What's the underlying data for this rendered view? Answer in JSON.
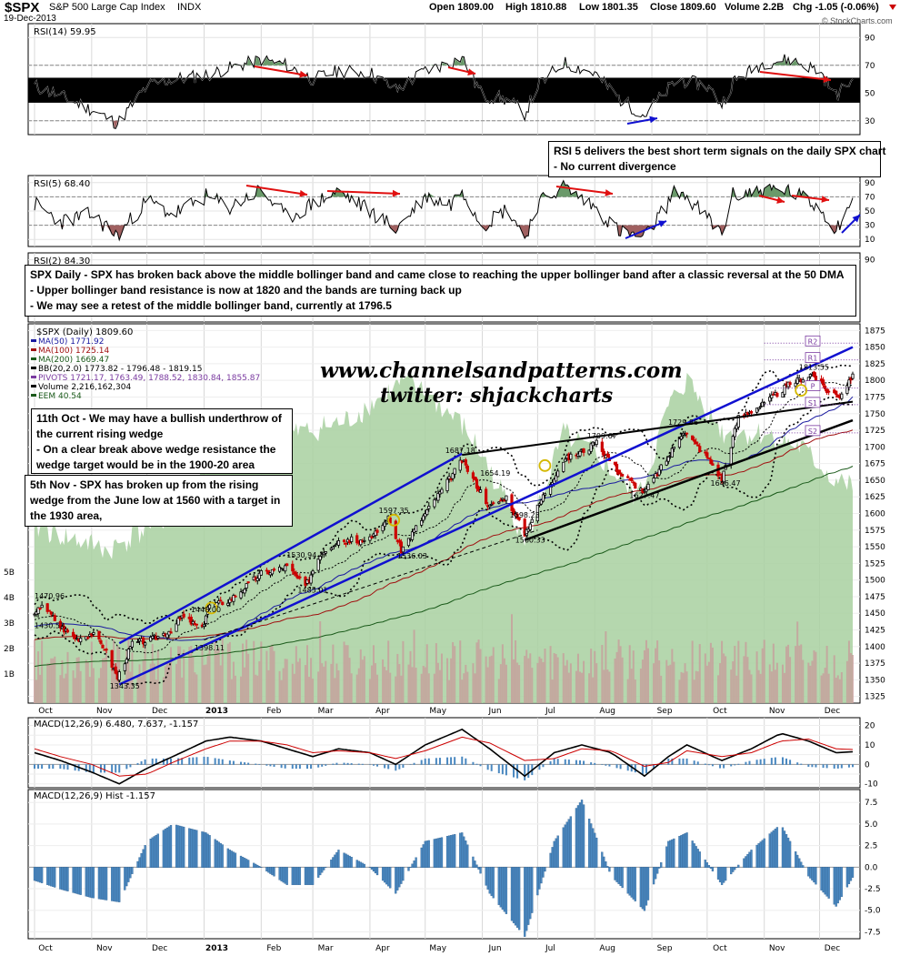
{
  "header": {
    "symbol": "$SPX",
    "name": "S&P 500 Large Cap Index",
    "exchange": "INDX",
    "date": "19-Dec-2013",
    "open": "Open 1809.00",
    "high": "High 1810.88",
    "low": "Low 1801.35",
    "close": "Close 1809.60",
    "volume": "Volume 2.2B",
    "chg": "Chg -1.05 (-0.06%)",
    "brand": "© StockCharts.com"
  },
  "watermark": {
    "site": "www.channelsandpatterns.com",
    "twitter": "twitter: shjackcharts"
  },
  "annotations": {
    "rsi5_note": [
      "RSI 5 delivers the best short term signals on the daily SPX chart",
      "- No current divergence"
    ],
    "daily_note": [
      "SPX Daily - SPX has broken back above the middle bollinger band and came close to reaching the upper bollinger band after a classic reversal at the 50 DMA",
      "- Upper bollinger band resistance is now at 1820 and the bands are turning back up",
      "- We may see a retest of the middle bollinger band, currently at 1796.5"
    ],
    "oct_note": [
      "11th Oct - We may have a bullish underthrow of",
      "the current rising wedge",
      "- On a clear break above wedge resistance the",
      "wedge target would be in the 1900-20 area"
    ],
    "nov_note": [
      "5th Nov - SPX has broken up from the rising",
      "wedge from the June low at 1560 with a target in",
      "the 1930 area,"
    ]
  },
  "colors": {
    "up": "#000000",
    "down": "#cc0000",
    "volume": "#c89a9a",
    "area": "#a8d0a0",
    "ma50": "#1a1aa0",
    "ma100": "#a01010",
    "ma200": "#1a5a1a",
    "trend_blue": "#1010d0",
    "rsi_fill": "#6a9a6a",
    "macd_hist": "#4a88c0",
    "arrow_red": "#e01010"
  },
  "chart_data": [
    {
      "type": "line",
      "panel": "rsi14",
      "title": "RSI(14) 59.95",
      "ylim": [
        20,
        100
      ],
      "yticks": [
        30,
        50,
        70,
        90
      ],
      "levels": [
        30,
        70
      ],
      "band": [
        43,
        61
      ],
      "x": [
        "2012-10-01",
        "2012-10-15",
        "2012-11-01",
        "2012-11-15",
        "2012-12-01",
        "2012-12-15",
        "2013-01-02",
        "2013-01-15",
        "2013-02-01",
        "2013-02-15",
        "2013-03-01",
        "2013-03-15",
        "2013-04-01",
        "2013-04-15",
        "2013-05-01",
        "2013-05-15",
        "2013-05-21",
        "2013-06-01",
        "2013-06-15",
        "2013-06-24",
        "2013-07-01",
        "2013-07-15",
        "2013-08-01",
        "2013-08-15",
        "2013-08-28",
        "2013-09-15",
        "2013-10-01",
        "2013-10-09",
        "2013-10-15",
        "2013-11-01",
        "2013-11-15",
        "2013-12-01",
        "2013-12-10",
        "2013-12-19"
      ],
      "values": [
        55,
        48,
        38,
        28,
        55,
        60,
        63,
        68,
        74,
        70,
        60,
        66,
        65,
        52,
        66,
        72,
        76,
        48,
        45,
        35,
        55,
        72,
        64,
        45,
        34,
        60,
        55,
        42,
        58,
        72,
        74,
        66,
        48,
        59.95
      ],
      "series_names": [
        "RSI(14)"
      ]
    },
    {
      "type": "line",
      "panel": "rsi5",
      "title": "RSI(5) 68.40",
      "ylim": [
        0,
        100
      ],
      "yticks": [
        10,
        30,
        50,
        70,
        90
      ],
      "levels": [
        30,
        70
      ],
      "x": [
        "2012-10-01",
        "2012-10-15",
        "2012-11-01",
        "2012-11-15",
        "2012-12-01",
        "2012-12-15",
        "2013-01-02",
        "2013-01-15",
        "2013-02-01",
        "2013-02-15",
        "2013-03-01",
        "2013-03-15",
        "2013-04-01",
        "2013-04-15",
        "2013-05-01",
        "2013-05-15",
        "2013-05-21",
        "2013-06-01",
        "2013-06-15",
        "2013-06-24",
        "2013-07-01",
        "2013-07-15",
        "2013-08-01",
        "2013-08-15",
        "2013-08-28",
        "2013-09-15",
        "2013-10-01",
        "2013-10-09",
        "2013-10-15",
        "2013-11-01",
        "2013-11-15",
        "2013-12-01",
        "2013-12-10",
        "2013-12-19"
      ],
      "values": [
        60,
        35,
        45,
        15,
        65,
        45,
        70,
        55,
        80,
        40,
        60,
        78,
        50,
        25,
        70,
        60,
        82,
        30,
        55,
        12,
        60,
        85,
        55,
        20,
        12,
        82,
        40,
        18,
        72,
        80,
        78,
        55,
        25,
        68.4
      ]
    },
    {
      "type": "line",
      "panel": "rsi2",
      "title": "RSI(2) 84.30",
      "ylim": [
        0,
        100
      ],
      "yticks": [
        90
      ]
    },
    {
      "type": "candlestick",
      "panel": "price",
      "title": "$SPX (Daily) 1809.60",
      "ylim": [
        1315,
        1885
      ],
      "yticks": [
        1325,
        1350,
        1375,
        1400,
        1425,
        1450,
        1475,
        1500,
        1525,
        1550,
        1575,
        1600,
        1625,
        1650,
        1675,
        1700,
        1725,
        1750,
        1775,
        1800,
        1825,
        1850,
        1875
      ],
      "volume_ticks": [
        "1B",
        "2B",
        "3B",
        "4B",
        "5B"
      ],
      "legend": [
        "MA(50) 1771.92",
        "MA(100) 1725.14",
        "MA(200) 1669.47",
        "BB(20,2.0) 1773.82 - 1796.48 - 1819.15",
        "PIVOTS 1721.17, 1763.49, 1788.52, 1830.84, 1855.87",
        "Volume 2,216,162,304",
        "EEM 40.54"
      ],
      "x": [
        "2012-10-01",
        "2012-10-05",
        "2012-10-15",
        "2012-10-24",
        "2012-11-01",
        "2012-11-08",
        "2012-11-15",
        "2012-11-23",
        "2012-12-03",
        "2012-12-14",
        "2012-12-20",
        "2012-12-31",
        "2013-01-03",
        "2013-01-15",
        "2013-02-01",
        "2013-02-15",
        "2013-02-25",
        "2013-03-05",
        "2013-03-15",
        "2013-04-01",
        "2013-04-11",
        "2013-04-18",
        "2013-05-01",
        "2013-05-10",
        "2013-05-21",
        "2013-06-05",
        "2013-06-14",
        "2013-06-24",
        "2013-07-05",
        "2013-07-15",
        "2013-08-02",
        "2013-08-15",
        "2013-08-28",
        "2013-09-10",
        "2013-09-18",
        "2013-10-01",
        "2013-10-09",
        "2013-10-18",
        "2013-11-01",
        "2013-11-15",
        "2013-11-27",
        "2013-12-05",
        "2013-12-12",
        "2013-12-19"
      ],
      "close": [
        1445,
        1465,
        1430,
        1412,
        1420,
        1398,
        1353,
        1405,
        1410,
        1425,
        1445,
        1426,
        1460,
        1470,
        1510,
        1520,
        1490,
        1540,
        1560,
        1560,
        1593,
        1545,
        1600,
        1635,
        1680,
        1610,
        1625,
        1570,
        1632,
        1680,
        1705,
        1660,
        1632,
        1685,
        1725,
        1685,
        1652,
        1745,
        1765,
        1795,
        1810,
        1785,
        1777,
        1809.6
      ],
      "price_labels": [
        "1470.96",
        "1430.53",
        "1343.35",
        "1398.11",
        "1448.00",
        "1485.01",
        "1530.94",
        "1597.35",
        "1536.03",
        "1687.18",
        "1654.19",
        "1598.23",
        "1560.33",
        "1709.67",
        "1627.47",
        "1729.86",
        "1646.47",
        "1813.55"
      ],
      "pivot_labels": [
        "R2",
        "R1",
        "P",
        "S1",
        "S2"
      ]
    },
    {
      "type": "line",
      "panel": "macd",
      "title": "MACD(12,26,9) 6.480, 7.637, -1.157",
      "ylim": [
        -12,
        24
      ],
      "yticks": [
        -10,
        -5,
        0,
        5,
        10,
        15,
        20
      ],
      "x": [
        "2012-10-01",
        "2012-10-15",
        "2012-11-01",
        "2012-11-16",
        "2012-12-01",
        "2012-12-15",
        "2013-01-02",
        "2013-01-15",
        "2013-02-01",
        "2013-02-15",
        "2013-03-01",
        "2013-03-15",
        "2013-04-01",
        "2013-04-15",
        "2013-05-01",
        "2013-05-21",
        "2013-06-05",
        "2013-06-24",
        "2013-07-10",
        "2013-07-25",
        "2013-08-10",
        "2013-08-28",
        "2013-09-10",
        "2013-09-20",
        "2013-10-09",
        "2013-10-25",
        "2013-11-10",
        "2013-11-25",
        "2013-12-10",
        "2013-12-19"
      ],
      "series": [
        {
          "name": "MACD(12,26,9)",
          "values": [
            6,
            2,
            -4,
            -10,
            -2,
            4,
            12,
            14,
            12,
            8,
            4,
            8,
            6,
            0,
            10,
            18,
            8,
            -6,
            6,
            10,
            6,
            -6,
            4,
            10,
            2,
            8,
            16,
            12,
            6,
            6.48
          ]
        },
        {
          "name": "Signal",
          "values": [
            8,
            4,
            0,
            -6,
            -5,
            1,
            8,
            12,
            12,
            10,
            6,
            7,
            6,
            3,
            7,
            14,
            11,
            2,
            3,
            8,
            7,
            -1,
            1,
            7,
            4,
            6,
            12,
            13,
            8,
            7.637
          ]
        }
      ]
    },
    {
      "type": "bar",
      "panel": "macd_hist",
      "title": "MACD(12,26,9) Hist -1.157",
      "ylim": [
        -8.3,
        9
      ],
      "yticks": [
        -7.5,
        -5,
        -2.5,
        0,
        2.5,
        5,
        7.5
      ],
      "x": [
        "2012-10-01",
        "2012-10-15",
        "2012-11-01",
        "2012-11-16",
        "2012-12-01",
        "2012-12-15",
        "2013-01-02",
        "2013-01-15",
        "2013-02-01",
        "2013-02-15",
        "2013-03-01",
        "2013-03-15",
        "2013-04-01",
        "2013-04-15",
        "2013-05-01",
        "2013-05-21",
        "2013-06-05",
        "2013-06-24",
        "2013-07-10",
        "2013-07-25",
        "2013-08-10",
        "2013-08-28",
        "2013-09-10",
        "2013-09-20",
        "2013-10-09",
        "2013-10-25",
        "2013-11-10",
        "2013-11-25",
        "2013-12-10",
        "2013-12-19"
      ],
      "values": [
        -1.5,
        -2.5,
        -3.5,
        -4,
        3,
        5,
        4,
        2,
        0,
        -2,
        -2,
        2,
        0,
        -3,
        3,
        4,
        -3,
        -8,
        3,
        7.8,
        -1,
        -5,
        3,
        4,
        -2,
        2,
        5,
        -1,
        -4.5,
        -1.157
      ]
    }
  ],
  "x_axis": {
    "months": [
      "Oct",
      "Nov",
      "Dec",
      "2013",
      "Feb",
      "Mar",
      "Apr",
      "May",
      "Jun",
      "Jul",
      "Aug",
      "Sep",
      "Oct",
      "Nov",
      "Dec"
    ]
  }
}
